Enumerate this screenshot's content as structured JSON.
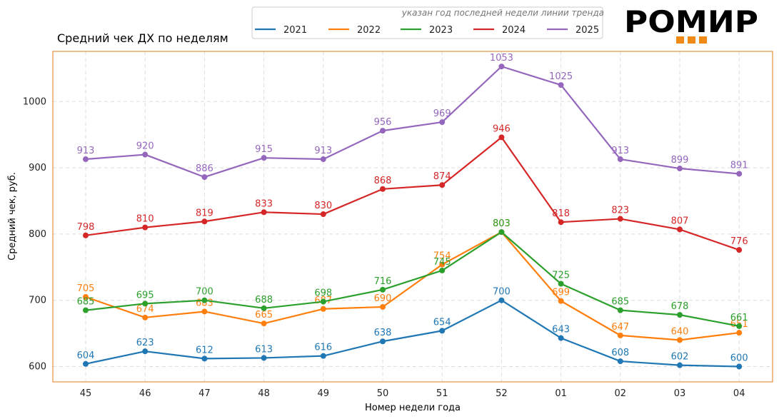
{
  "title": "Средний чек ДХ по неделям",
  "legend_note": "указан год последней недели линии тренда",
  "logo": "РОМИР",
  "colors": {
    "frame": "#e07b1a",
    "logo_squares": "#f08a17",
    "grid": "#dddddd",
    "text": "#222222"
  },
  "chart_data": {
    "type": "line",
    "title": "Средний чек ДХ по неделям",
    "xlabel": "Номер недели года",
    "ylabel": "Средний чек, руб.",
    "categories": [
      "45",
      "46",
      "47",
      "48",
      "49",
      "50",
      "51",
      "52",
      "01",
      "02",
      "03",
      "04"
    ],
    "yticks": [
      600,
      700,
      800,
      900,
      1000
    ],
    "ylim": [
      575,
      1075
    ],
    "grid": true,
    "legend_position": "top",
    "series": [
      {
        "name": "2021",
        "color": "#1f77b4",
        "values": [
          604,
          623,
          612,
          613,
          616,
          638,
          654,
          700,
          643,
          608,
          602,
          600
        ]
      },
      {
        "name": "2022",
        "color": "#ff7f0e",
        "values": [
          705,
          674,
          683,
          665,
          687,
          690,
          754,
          803,
          699,
          647,
          640,
          651
        ]
      },
      {
        "name": "2023",
        "color": "#2ca02c",
        "values": [
          685,
          695,
          700,
          688,
          698,
          716,
          745,
          803,
          725,
          685,
          678,
          661
        ]
      },
      {
        "name": "2024",
        "color": "#d62728",
        "values": [
          798,
          810,
          819,
          833,
          830,
          868,
          874,
          946,
          818,
          823,
          807,
          776
        ]
      },
      {
        "name": "2025",
        "color": "#9467bd",
        "values": [
          913,
          920,
          886,
          915,
          913,
          956,
          969,
          1053,
          1025,
          913,
          899,
          891
        ]
      }
    ]
  }
}
